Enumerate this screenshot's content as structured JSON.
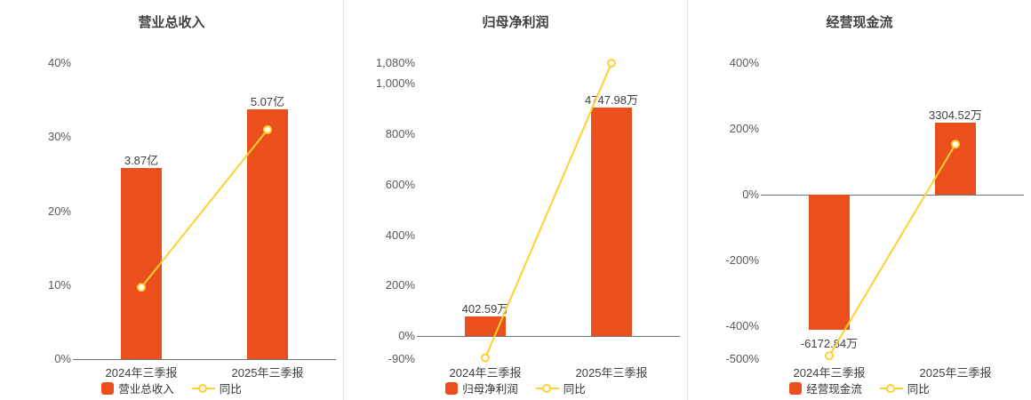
{
  "page": {
    "background": "#ffffff",
    "divider_color": "#e4e4e4"
  },
  "colors": {
    "bar": "#eb4f1c",
    "line": "#ffd02f",
    "marker_fill": "#ffffff",
    "title_text": "#404040",
    "axis_text": "#595959",
    "value_text": "#404040",
    "category_text": "#404040",
    "legend_text": "#333333",
    "axis_line": "#6e7079"
  },
  "chart_data": [
    {
      "type": "bar",
      "title": "营业总收入",
      "categories": [
        "2024年三季报",
        "2025年三季报"
      ],
      "bar_series": {
        "name": "营业总收入",
        "value_labels": [
          "3.87亿",
          "5.07亿"
        ],
        "plot_pct": [
          25.8,
          33.8
        ]
      },
      "line_series": {
        "name": "同比",
        "values_pct": [
          9.7,
          31.0
        ]
      },
      "y_axis": {
        "min": 0,
        "max": 40,
        "ticks": [
          {
            "value": 40,
            "label": "40%"
          },
          {
            "value": 30,
            "label": "30%"
          },
          {
            "value": 20,
            "label": "20%"
          },
          {
            "value": 10,
            "label": "10%"
          },
          {
            "value": 0,
            "label": "0%"
          }
        ]
      },
      "legend": [
        "营业总收入",
        "同比"
      ],
      "grid": false,
      "legend_position": "bottom"
    },
    {
      "type": "bar",
      "title": "归母净利润",
      "categories": [
        "2024年三季报",
        "2025年三季报"
      ],
      "bar_series": {
        "name": "归母净利润",
        "value_labels": [
          "402.59万",
          "4747.98万"
        ],
        "plot_pct": [
          77,
          905
        ]
      },
      "line_series": {
        "name": "同比",
        "values_pct": [
          -85,
          1080
        ]
      },
      "y_axis": {
        "min": -90,
        "max": 1080,
        "ticks": [
          {
            "value": 1080,
            "label": "1,080%"
          },
          {
            "value": 1000,
            "label": "1,000%"
          },
          {
            "value": 800,
            "label": "800%"
          },
          {
            "value": 600,
            "label": "600%"
          },
          {
            "value": 400,
            "label": "400%"
          },
          {
            "value": 200,
            "label": "200%"
          },
          {
            "value": 0,
            "label": "0%"
          },
          {
            "value": -90,
            "label": "-90%"
          }
        ]
      },
      "legend": [
        "归母净利润",
        "同比"
      ],
      "grid": false,
      "legend_position": "bottom"
    },
    {
      "type": "bar",
      "title": "经营现金流",
      "categories": [
        "2024年三季报",
        "2025年三季报"
      ],
      "bar_series": {
        "name": "经营现金流",
        "value_labels": [
          "-6172.84万",
          "3304.52万"
        ],
        "plot_pct": [
          -410,
          219
        ]
      },
      "line_series": {
        "name": "同比",
        "values_pct": [
          -490,
          153.5
        ]
      },
      "y_axis": {
        "min": -500,
        "max": 400,
        "ticks": [
          {
            "value": 400,
            "label": "400%"
          },
          {
            "value": 200,
            "label": "200%"
          },
          {
            "value": 0,
            "label": "0%"
          },
          {
            "value": -200,
            "label": "-200%"
          },
          {
            "value": -400,
            "label": "-400%"
          },
          {
            "value": -500,
            "label": "-500%"
          }
        ]
      },
      "legend": [
        "经营现金流",
        "同比"
      ],
      "grid": false,
      "legend_position": "bottom"
    }
  ]
}
